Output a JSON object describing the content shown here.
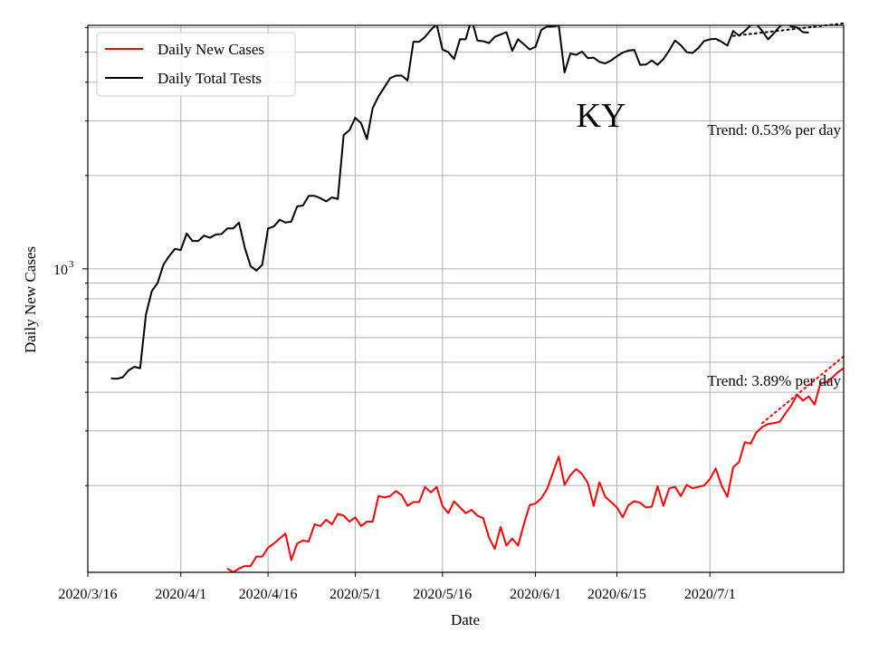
{
  "chart_data": {
    "type": "line",
    "title": "",
    "xlabel": "Date",
    "ylabel": "Daily New Cases",
    "yscale": "log",
    "ylim": [
      105,
      6100
    ],
    "xlim": [
      "2020-03-16",
      "2020-07-24"
    ],
    "grid": true,
    "legend_position": "top-left",
    "state_label": "KY",
    "x_ticks": [
      {
        "date": "2020-03-16",
        "label": "2020/3/16"
      },
      {
        "date": "2020-04-01",
        "label": "2020/4/1"
      },
      {
        "date": "2020-04-16",
        "label": "2020/4/16"
      },
      {
        "date": "2020-05-01",
        "label": "2020/5/1"
      },
      {
        "date": "2020-05-16",
        "label": "2020/5/16"
      },
      {
        "date": "2020-06-01",
        "label": "2020/6/1"
      },
      {
        "date": "2020-06-15",
        "label": "2020/6/15"
      },
      {
        "date": "2020-07-01",
        "label": "2020/7/1"
      }
    ],
    "y_major_ticks": [
      {
        "value": 1000,
        "label": "10",
        "exp": "3"
      }
    ],
    "y_minor_ticks": [
      200,
      300,
      400,
      500,
      600,
      700,
      800,
      900,
      2000,
      3000,
      4000,
      5000,
      6000
    ],
    "series": [
      {
        "name": "Daily New Cases",
        "color": "#ff0000",
        "start_date": "2020-03-20",
        "values": [
          null,
          null,
          null,
          null,
          null,
          null,
          null,
          null,
          null,
          null,
          null,
          null,
          null,
          null,
          null,
          null,
          null,
          null,
          null,
          null,
          108,
          105,
          108,
          110,
          110,
          118,
          118,
          126,
          130,
          135,
          140,
          115,
          130,
          133,
          132,
          150,
          148,
          155,
          150,
          162,
          160,
          153,
          158,
          148,
          153,
          153,
          185,
          183,
          185,
          192,
          186,
          172,
          177,
          177,
          198,
          190,
          198,
          172,
          163,
          178,
          170,
          163,
          167,
          160,
          157,
          136,
          125,
          147,
          128,
          135,
          128,
          150,
          173,
          175,
          182,
          195,
          220,
          248,
          201,
          216,
          226,
          218,
          204,
          172,
          205,
          184,
          177,
          170,
          158,
          173,
          178,
          176,
          170,
          171,
          199,
          172,
          196,
          198,
          185,
          201,
          196,
          198,
          200,
          210,
          227,
          200,
          184,
          229,
          238,
          276,
          273,
          297,
          309,
          316,
          318,
          321,
          342,
          363,
          393,
          376,
          388,
          365,
          427,
          431,
          445,
          464,
          478,
          489
        ]
      },
      {
        "name": "Daily Total Tests",
        "color": "#000000",
        "start_date": "2020-03-20",
        "values": [
          443,
          442,
          447,
          470,
          483,
          478,
          712,
          847,
          900,
          1030,
          1100,
          1160,
          1150,
          1300,
          1230,
          1230,
          1280,
          1260,
          1290,
          1295,
          1350,
          1350,
          1410,
          1170,
          1020,
          988,
          1030,
          1350,
          1370,
          1440,
          1410,
          1420,
          1590,
          1600,
          1720,
          1720,
          1690,
          1650,
          1700,
          1680,
          2700,
          2800,
          3070,
          2950,
          2620,
          3300,
          3600,
          3850,
          4120,
          4200,
          4200,
          4050,
          5400,
          5400,
          5600,
          5900,
          6150,
          5100,
          5000,
          4750,
          5500,
          5500,
          6400,
          5450,
          5420,
          5350,
          5600,
          5700,
          5800,
          5050,
          5500,
          5300,
          5100,
          5200,
          5900,
          6050,
          6050,
          6100,
          4300,
          4950,
          4900,
          5020,
          4780,
          4800,
          4650,
          4600,
          4700,
          4850,
          4980,
          5060,
          5080,
          4550,
          4560,
          4700,
          4550,
          4750,
          5060,
          5450,
          5260,
          5000,
          4970,
          5150,
          5430,
          5500,
          5520,
          5400,
          5250,
          5850,
          5650,
          5850,
          6100,
          6150,
          5850,
          5500,
          5750,
          6050,
          6200,
          6050,
          6000,
          5800,
          5780
        ]
      }
    ],
    "trends": [
      {
        "series": "Daily Total Tests",
        "label": "Trend: 0.53% per day",
        "color": "#000000",
        "from": "2020-07-05",
        "to": "2020-07-24",
        "start_value": 5640,
        "end_value": 6190
      },
      {
        "series": "Daily New Cases",
        "label": "Trend: 3.89% per day",
        "color": "#ff0000",
        "from": "2020-07-10",
        "to": "2020-07-24",
        "start_value": 318,
        "end_value": 522
      }
    ]
  }
}
